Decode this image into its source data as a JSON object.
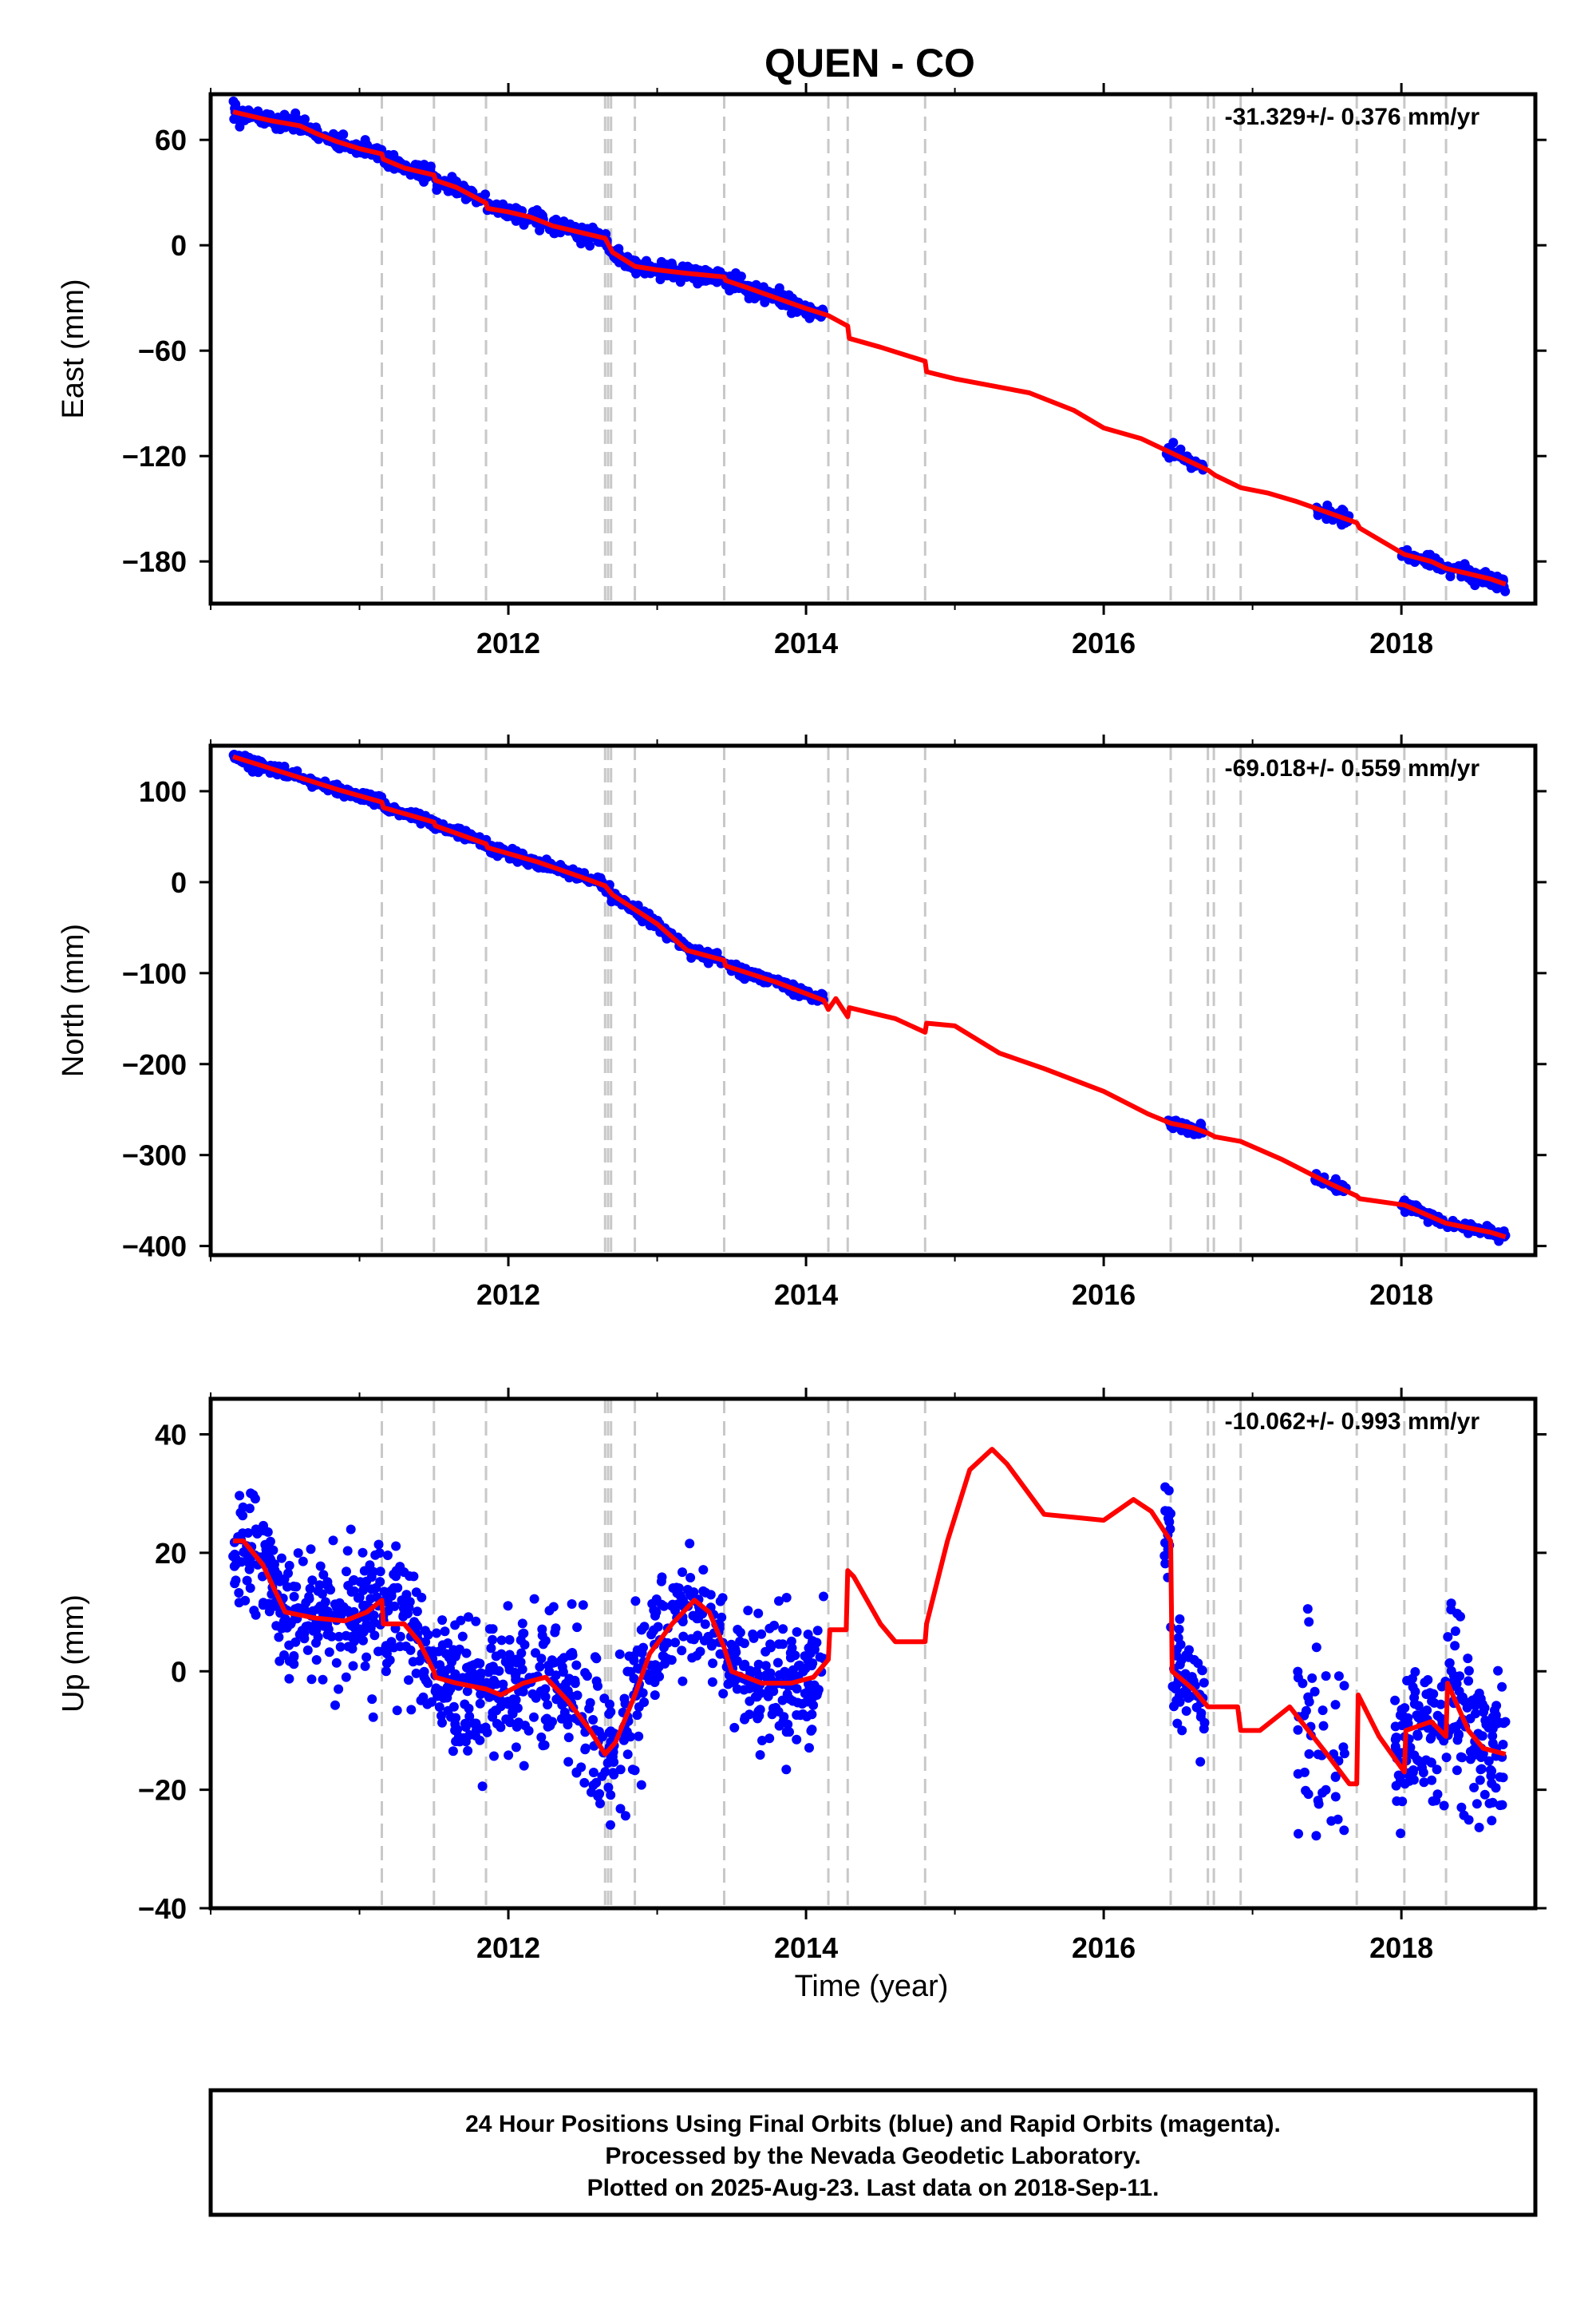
{
  "chart_data": [
    {
      "type": "scatter",
      "title": "QUEN - CO",
      "ylabel": "East (mm)",
      "rate_label": "-31.329+/- 0.376 mm/yr",
      "xlim": [
        2010.0,
        2018.9
      ],
      "ylim": [
        -204,
        86
      ],
      "yticks": [
        60,
        0,
        -60,
        -120,
        -180
      ],
      "ytick_labels": [
        "60",
        "0",
        "−60",
        "−120",
        "−180"
      ],
      "xticks": [
        2012,
        2014,
        2016,
        2018
      ],
      "xtick_labels": [
        "2012",
        "2014",
        "2016",
        "2018"
      ],
      "event_lines": [
        2011.15,
        2011.5,
        2011.85,
        2012.65,
        2012.67,
        2012.69,
        2012.85,
        2013.45,
        2014.15,
        2014.28,
        2014.8,
        2016.45,
        2016.7,
        2016.74,
        2016.92,
        2017.7,
        2018.02,
        2018.3
      ],
      "series": [
        {
          "kind": "points",
          "color": "#0000ff",
          "segments": [
            {
              "x0": 2010.15,
              "x1": 2014.12,
              "n": 700,
              "noise": 2.2
            },
            {
              "x0": 2016.42,
              "x1": 2016.68,
              "n": 40,
              "noise": 2.0
            },
            {
              "x0": 2017.42,
              "x1": 2017.65,
              "n": 30,
              "noise": 2.0
            },
            {
              "x0": 2018.0,
              "x1": 2018.7,
              "n": 140,
              "noise": 2.0
            }
          ]
        },
        {
          "kind": "line",
          "color": "#ff0000",
          "x": [
            2010.15,
            2010.4,
            2010.6,
            2010.7,
            2010.85,
            2011.0,
            2011.15,
            2011.16,
            2011.3,
            2011.5,
            2011.51,
            2011.65,
            2011.85,
            2011.86,
            2012.0,
            2012.15,
            2012.3,
            2012.5,
            2012.65,
            2012.7,
            2012.85,
            2013.0,
            2013.2,
            2013.45,
            2013.46,
            2013.6,
            2013.8,
            2014.0,
            2014.15,
            2014.28,
            2014.29,
            2014.5,
            2014.8,
            2014.81,
            2015.0,
            2015.25,
            2015.5,
            2015.8,
            2016.0,
            2016.25,
            2016.45,
            2016.6,
            2016.7,
            2016.75,
            2016.92,
            2017.1,
            2017.3,
            2017.5,
            2017.7,
            2017.72,
            2017.9,
            2018.02,
            2018.2,
            2018.3,
            2018.45,
            2018.6,
            2018.7
          ],
          "y": [
            76,
            71,
            68,
            64,
            59,
            55,
            52,
            49,
            44,
            40,
            37,
            33,
            24,
            21,
            19,
            16,
            11,
            7,
            4,
            -4,
            -12,
            -14,
            -16,
            -18,
            -20,
            -24,
            -30,
            -36,
            -40,
            -46,
            -53,
            -58,
            -66,
            -72,
            -76,
            -80,
            -84,
            -94,
            -104,
            -110,
            -118,
            -124,
            -128,
            -131,
            -138,
            -141,
            -146,
            -152,
            -158,
            -161,
            -170,
            -176,
            -180,
            -184,
            -187,
            -190,
            -193
          ]
        }
      ]
    },
    {
      "type": "scatter",
      "ylabel": "North (mm)",
      "rate_label": "-69.018+/- 0.559 mm/yr",
      "xlim": [
        2010.0,
        2018.9
      ],
      "ylim": [
        -410,
        150
      ],
      "yticks": [
        100,
        0,
        -100,
        -200,
        -300,
        -400
      ],
      "ytick_labels": [
        "100",
        "0",
        "−100",
        "−200",
        "−300",
        "−400"
      ],
      "xticks": [
        2012,
        2014,
        2016,
        2018
      ],
      "xtick_labels": [
        "2012",
        "2014",
        "2016",
        "2018"
      ],
      "event_lines": [
        2011.15,
        2011.5,
        2011.85,
        2012.65,
        2012.67,
        2012.69,
        2012.85,
        2013.45,
        2014.15,
        2014.28,
        2014.8,
        2016.45,
        2016.7,
        2016.74,
        2016.92,
        2017.7,
        2018.02,
        2018.3
      ],
      "series": [
        {
          "kind": "points",
          "color": "#0000ff",
          "segments": [
            {
              "x0": 2010.15,
              "x1": 2014.12,
              "n": 700,
              "noise": 3.0
            },
            {
              "x0": 2016.42,
              "x1": 2016.68,
              "n": 40,
              "noise": 3.0
            },
            {
              "x0": 2017.42,
              "x1": 2017.65,
              "n": 30,
              "noise": 3.0
            },
            {
              "x0": 2018.0,
              "x1": 2018.7,
              "n": 140,
              "noise": 3.0
            }
          ]
        },
        {
          "kind": "line",
          "color": "#ff0000",
          "x": [
            2010.15,
            2010.5,
            2010.85,
            2011.15,
            2011.16,
            2011.5,
            2011.51,
            2011.85,
            2011.86,
            2012.2,
            2012.5,
            2012.65,
            2012.7,
            2012.85,
            2013.0,
            2013.2,
            2013.45,
            2013.46,
            2013.8,
            2014.12,
            2014.15,
            2014.2,
            2014.28,
            2014.29,
            2014.6,
            2014.8,
            2014.81,
            2015.0,
            2015.3,
            2015.6,
            2016.0,
            2016.3,
            2016.45,
            2016.6,
            2016.7,
            2016.75,
            2016.92,
            2017.2,
            2017.5,
            2017.7,
            2017.72,
            2018.02,
            2018.3,
            2018.6,
            2018.7
          ],
          "y": [
            138,
            120,
            102,
            88,
            82,
            66,
            62,
            42,
            38,
            22,
            5,
            -4,
            -14,
            -30,
            -46,
            -75,
            -86,
            -92,
            -110,
            -130,
            -140,
            -128,
            -148,
            -138,
            -150,
            -165,
            -155,
            -158,
            -188,
            -205,
            -230,
            -255,
            -265,
            -270,
            -276,
            -280,
            -285,
            -305,
            -330,
            -345,
            -348,
            -355,
            -375,
            -385,
            -390
          ]
        }
      ]
    },
    {
      "type": "scatter",
      "ylabel": "Up (mm)",
      "xlabel": "Time (year)",
      "rate_label": "-10.062+/- 0.993 mm/yr",
      "xlim": [
        2010.0,
        2018.9
      ],
      "ylim": [
        -40,
        46
      ],
      "yticks": [
        40,
        20,
        0,
        -20,
        -40
      ],
      "ytick_labels": [
        "40",
        "20",
        "0",
        "−20",
        "−40"
      ],
      "xticks": [
        2012,
        2014,
        2016,
        2018
      ],
      "xtick_labels": [
        "2012",
        "2014",
        "2016",
        "2018"
      ],
      "event_lines": [
        2011.15,
        2011.5,
        2011.85,
        2012.65,
        2012.67,
        2012.69,
        2012.85,
        2013.45,
        2014.15,
        2014.28,
        2014.8,
        2016.45,
        2016.7,
        2016.74,
        2016.92,
        2017.7,
        2018.02,
        2018.3
      ],
      "series": [
        {
          "kind": "points",
          "color": "#0000ff",
          "segments": [
            {
              "x0": 2010.15,
              "x1": 2014.12,
              "n": 1000,
              "noise": 5.5
            },
            {
              "x0": 2016.4,
              "x1": 2016.68,
              "n": 70,
              "noise": 5.0
            },
            {
              "x0": 2017.3,
              "x1": 2017.62,
              "n": 45,
              "noise": 9.0
            },
            {
              "x0": 2017.95,
              "x1": 2018.7,
              "n": 200,
              "noise": 6.5
            }
          ]
        },
        {
          "kind": "line",
          "color": "#ff0000",
          "x": [
            2010.15,
            2010.22,
            2010.35,
            2010.5,
            2010.7,
            2010.9,
            2011.05,
            2011.15,
            2011.16,
            2011.3,
            2011.4,
            2011.5,
            2011.51,
            2011.65,
            2011.85,
            2011.95,
            2012.1,
            2012.25,
            2012.4,
            2012.55,
            2012.65,
            2012.72,
            2012.85,
            2012.95,
            2013.1,
            2013.25,
            2013.35,
            2013.45,
            2013.5,
            2013.7,
            2013.9,
            2014.05,
            2014.15,
            2014.16,
            2014.27,
            2014.28,
            2014.32,
            2014.5,
            2014.6,
            2014.8,
            2014.81,
            2014.95,
            2015.1,
            2015.25,
            2015.35,
            2015.6,
            2015.8,
            2016.0,
            2016.2,
            2016.32,
            2016.45,
            2016.46,
            2016.6,
            2016.7,
            2016.71,
            2016.9,
            2016.92,
            2017.05,
            2017.25,
            2017.5,
            2017.65,
            2017.7,
            2017.71,
            2017.85,
            2018.02,
            2018.03,
            2018.2,
            2018.3,
            2018.31,
            2018.45,
            2018.55,
            2018.7
          ],
          "y": [
            22,
            22,
            18,
            10,
            9,
            8.5,
            10,
            12,
            8,
            8,
            5,
            0,
            -1,
            -2,
            -3,
            -4,
            -2,
            -1,
            -5,
            -10,
            -14,
            -12,
            -4,
            3,
            8,
            12,
            10,
            4,
            0,
            -2,
            -2,
            -1,
            2,
            7,
            7,
            17,
            16,
            8,
            5,
            5,
            8,
            22,
            34,
            37.5,
            35,
            26.5,
            26,
            25.5,
            29,
            27,
            22,
            0,
            -3,
            -6,
            -6,
            -6,
            -10,
            -10,
            -6,
            -14,
            -19,
            -19,
            -4,
            -11,
            -17,
            -10,
            -8.5,
            -11,
            -2,
            -10,
            -13,
            -14
          ]
        }
      ]
    }
  ],
  "footer": {
    "line1": "24 Hour Positions Using Final Orbits (blue) and Rapid Orbits (magenta).",
    "line2": "Processed by the Nevada Geodetic Laboratory.",
    "line3": "Plotted on 2025-Aug-23. Last data on 2018-Sep-11."
  }
}
